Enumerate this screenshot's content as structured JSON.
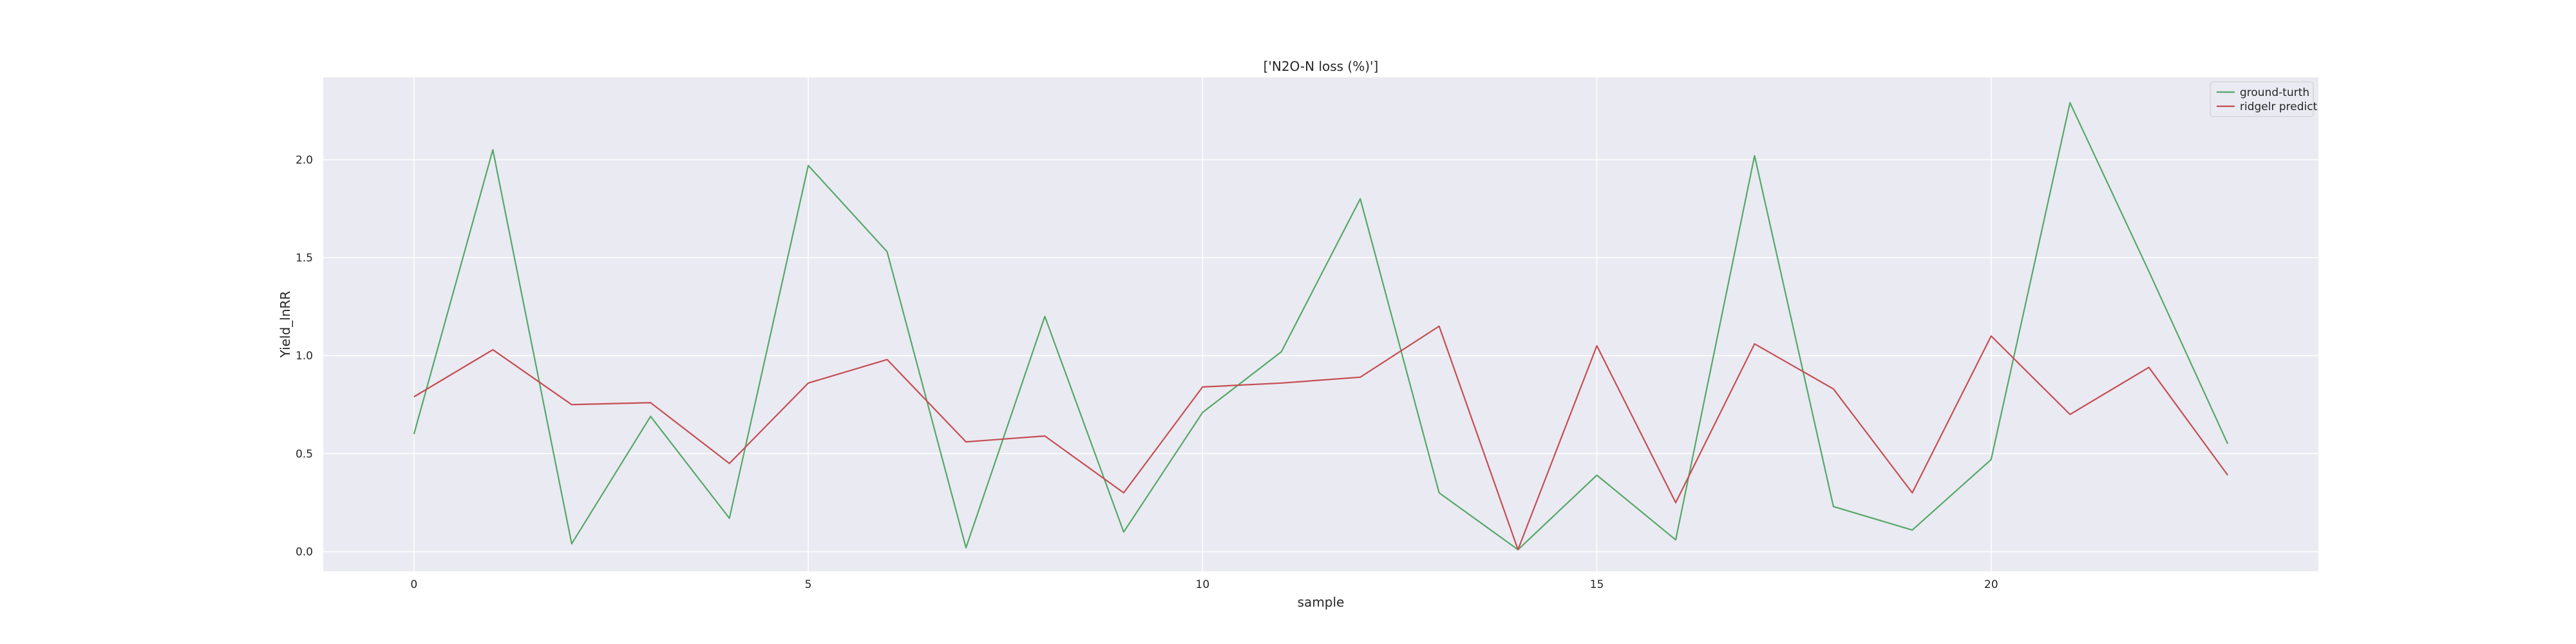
{
  "chart_data": {
    "type": "line",
    "title": "['N2O-N loss (%)']",
    "xlabel": "sample",
    "ylabel": "Yield_lnRR",
    "xlim": [
      -1.15,
      24.15
    ],
    "ylim": [
      -0.1,
      2.42
    ],
    "xticks": [
      0,
      5,
      10,
      15,
      20
    ],
    "yticks": [
      0.0,
      0.5,
      1.0,
      1.5,
      2.0
    ],
    "xtick_labels": [
      "0",
      "5",
      "10",
      "15",
      "20"
    ],
    "ytick_labels": [
      "0.0",
      "0.5",
      "1.0",
      "1.5",
      "2.0"
    ],
    "grid": true,
    "legend_position": "upper right",
    "background_color": "#eaeaf2",
    "grid_color": "#ffffff",
    "x": [
      0,
      1,
      2,
      3,
      4,
      5,
      6,
      7,
      8,
      9,
      10,
      11,
      12,
      13,
      14,
      15,
      16,
      17,
      18,
      19,
      20,
      21,
      22,
      23
    ],
    "series": [
      {
        "name": "ground-turth",
        "color": "#55a868",
        "values": [
          0.6,
          2.05,
          0.04,
          0.69,
          0.17,
          1.97,
          1.53,
          0.02,
          1.2,
          0.1,
          0.71,
          1.02,
          1.8,
          0.3,
          0.01,
          0.39,
          0.06,
          2.02,
          0.23,
          0.11,
          0.47,
          2.29,
          1.43,
          0.55
        ]
      },
      {
        "name": "ridgelr predict",
        "color": "#c44e52",
        "values": [
          0.79,
          1.03,
          0.75,
          0.76,
          0.45,
          0.86,
          0.98,
          0.56,
          0.59,
          0.3,
          0.84,
          0.86,
          0.89,
          1.15,
          0.01,
          1.05,
          0.25,
          1.06,
          0.83,
          0.3,
          1.1,
          0.7,
          0.94,
          0.39
        ]
      }
    ]
  }
}
